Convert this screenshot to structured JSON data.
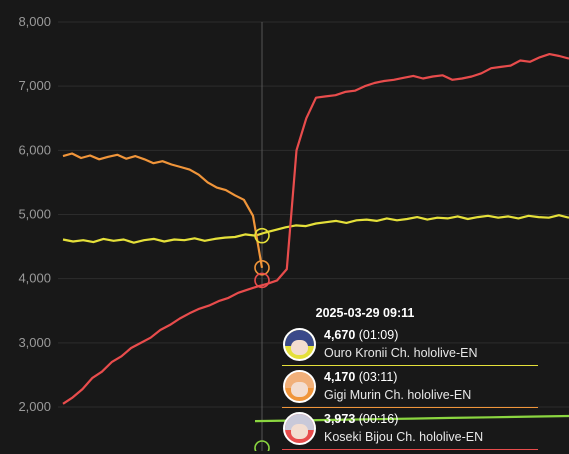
{
  "chart_data": {
    "type": "line",
    "ylim": [
      1800,
      8000
    ],
    "yticks": [
      "8,000",
      "7,000",
      "6,000",
      "5,000",
      "4,000",
      "3,000",
      "2,000"
    ],
    "ytick_values": [
      8000,
      7000,
      6000,
      5000,
      4000,
      3000,
      2000
    ],
    "grid": true,
    "series": [
      {
        "name": "Ouro Kronii Ch. hololive-EN",
        "color": "#e5e03a",
        "values": [
          4610,
          4580,
          4600,
          4570,
          4620,
          4590,
          4610,
          4560,
          4600,
          4620,
          4580,
          4610,
          4600,
          4630,
          4590,
          4620,
          4640,
          4650,
          4690,
          4670,
          4720,
          4760,
          4800,
          4830,
          4820,
          4860,
          4880,
          4900,
          4870,
          4910,
          4920,
          4900,
          4940,
          4910,
          4930,
          4960,
          4920,
          4950,
          4940,
          4970,
          4930,
          4960,
          4980,
          4950,
          4970,
          4940,
          4980,
          4960,
          4950,
          4990,
          4950
        ]
      },
      {
        "name": "Gigi Murin Ch. hololive-EN",
        "color": "#f0953a",
        "values": [
          5910,
          5950,
          5880,
          5920,
          5860,
          5900,
          5930,
          5870,
          5910,
          5860,
          5800,
          5830,
          5780,
          5740,
          5700,
          5620,
          5500,
          5420,
          5380,
          5300,
          5230,
          4980,
          4170
        ]
      },
      {
        "name": "Koseki Bijou Ch. hololive-EN",
        "color": "#e84c4c",
        "values": [
          2050,
          2150,
          2280,
          2450,
          2550,
          2700,
          2790,
          2920,
          3000,
          3080,
          3200,
          3280,
          3380,
          3460,
          3530,
          3580,
          3650,
          3700,
          3780,
          3830,
          3880,
          3920,
          3973,
          4150,
          6000,
          6500,
          6820,
          6840,
          6860,
          6910,
          6930,
          7000,
          7050,
          7080,
          7100,
          7130,
          7160,
          7120,
          7150,
          7170,
          7100,
          7120,
          7150,
          7200,
          7280,
          7300,
          7320,
          7400,
          7380,
          7450,
          7500,
          7470,
          7430
        ]
      },
      {
        "name": "",
        "color": "#8bd640",
        "values": [
          1780,
          1790,
          1800,
          1810,
          1820,
          1830,
          1840,
          1850,
          1860
        ]
      }
    ]
  },
  "tooltip": {
    "time": "2025-03-29 09:11",
    "entries": [
      {
        "value": "4,670",
        "duration": "(01:09)",
        "name": "Ouro Kronii Ch. hololive-EN",
        "color": "#e5e03a",
        "hair": "#3a4a8a"
      },
      {
        "value": "4,170",
        "duration": "(03:11)",
        "name": "Gigi Murin Ch. hololive-EN",
        "color": "#f0953a",
        "hair": "#f1b07a"
      },
      {
        "value": "3,973",
        "duration": "(00:16)",
        "name": "Koseki Bijou Ch. hololive-EN",
        "color": "#e84c4c",
        "hair": "#c9c9d9"
      }
    ]
  }
}
